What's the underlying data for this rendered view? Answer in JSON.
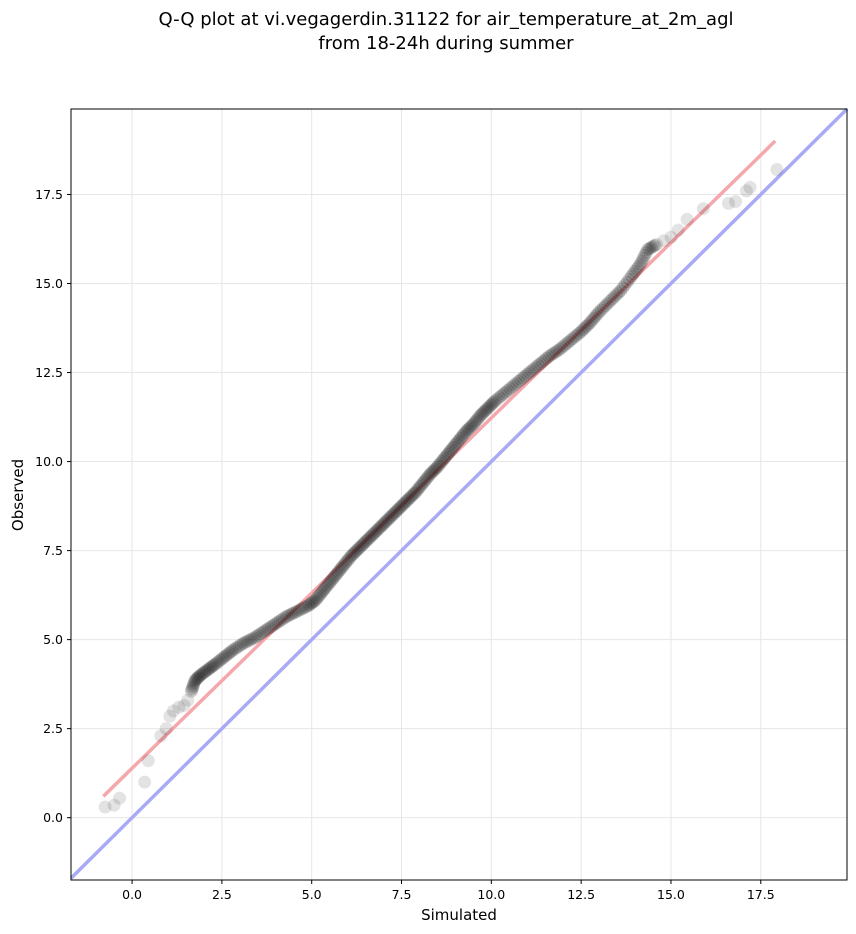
{
  "chart_data": {
    "type": "scatter",
    "title_line1": "Q-Q plot at vi.vegagerdin.31122 for air_temperature_at_2m_agl",
    "title_line2": "from 18-24h during summer",
    "xlabel": "Simulated",
    "ylabel": "Observed",
    "xlim": [
      -1.7,
      19.9
    ],
    "ylim": [
      -1.75,
      19.9
    ],
    "xticks": [
      0.0,
      2.5,
      5.0,
      7.5,
      10.0,
      12.5,
      15.0,
      17.5
    ],
    "yticks": [
      0.0,
      2.5,
      5.0,
      7.5,
      10.0,
      12.5,
      15.0,
      17.5
    ],
    "xtick_labels": [
      "0.0",
      "2.5",
      "5.0",
      "7.5",
      "10.0",
      "12.5",
      "15.0",
      "17.5"
    ],
    "ytick_labels": [
      "0.0",
      "2.5",
      "5.0",
      "7.5",
      "10.0",
      "12.5",
      "15.0",
      "17.5"
    ],
    "grid": true,
    "reference_line": {
      "x": [
        -1.7,
        19.9
      ],
      "y": [
        -1.7,
        19.9
      ],
      "color": "#a9aaf5"
    },
    "fit_line": {
      "x": [
        -0.8,
        17.9
      ],
      "y": [
        0.6,
        19.0
      ],
      "color": "#f4a8ab"
    },
    "point_color": "#000000",
    "quantiles": {
      "x": [
        -0.75,
        -0.5,
        -0.35,
        0.35,
        0.45,
        0.8,
        0.95,
        1.05,
        1.15,
        1.3,
        1.45,
        1.55,
        1.65,
        1.75,
        1.9,
        2.1,
        2.3,
        2.55,
        2.8,
        3.1,
        3.4,
        3.7,
        4.0,
        4.3,
        4.6,
        4.9,
        5.1,
        5.3,
        5.5,
        5.7,
        5.9,
        6.1,
        6.3,
        6.5,
        6.7,
        6.9,
        7.1,
        7.3,
        7.5,
        7.7,
        7.9,
        8.1,
        8.3,
        8.5,
        8.7,
        8.9,
        9.1,
        9.3,
        9.5,
        9.7,
        9.9,
        10.1,
        10.4,
        10.7,
        11.0,
        11.3,
        11.6,
        11.9,
        12.2,
        12.5,
        12.75,
        13.0,
        13.3,
        13.6,
        13.9,
        14.15,
        14.35,
        14.6,
        14.8,
        15.0,
        15.2,
        15.45,
        15.9,
        16.6,
        16.8,
        17.1,
        17.2,
        17.95
      ],
      "y": [
        0.3,
        0.35,
        0.55,
        1.0,
        1.6,
        2.3,
        2.5,
        2.85,
        3.0,
        3.1,
        3.15,
        3.3,
        3.55,
        3.85,
        4.0,
        4.15,
        4.3,
        4.5,
        4.7,
        4.9,
        5.05,
        5.25,
        5.45,
        5.65,
        5.8,
        5.95,
        6.1,
        6.35,
        6.6,
        6.85,
        7.1,
        7.35,
        7.55,
        7.75,
        7.95,
        8.15,
        8.35,
        8.55,
        8.75,
        8.95,
        9.15,
        9.4,
        9.65,
        9.85,
        10.1,
        10.35,
        10.6,
        10.85,
        11.05,
        11.3,
        11.5,
        11.7,
        11.95,
        12.2,
        12.45,
        12.7,
        12.95,
        13.15,
        13.4,
        13.65,
        13.9,
        14.2,
        14.5,
        14.8,
        15.2,
        15.55,
        15.95,
        16.1,
        16.2,
        16.3,
        16.5,
        16.8,
        17.1,
        17.25,
        17.3,
        17.6,
        17.7,
        18.2
      ]
    }
  }
}
